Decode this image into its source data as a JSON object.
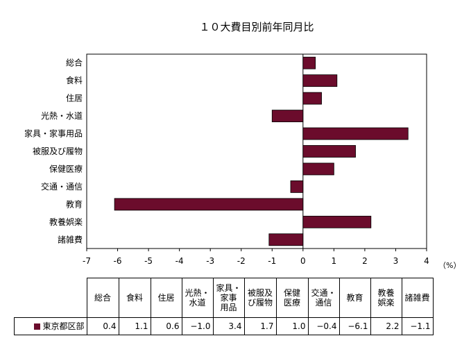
{
  "chart_data": {
    "type": "bar",
    "orientation": "horizontal",
    "title": "１０大費目別前年同月比",
    "unit_label": "（%）",
    "categories": [
      "総合",
      "食料",
      "住居",
      "光熱・水道",
      "家具・家事用品",
      "被服及び履物",
      "保健医療",
      "交通・通信",
      "教育",
      "教養娯楽",
      "諸雑費"
    ],
    "table_headers": [
      "総合",
      "食料",
      "住居",
      "光熱・\n水道",
      "家具・\n家事\n用品",
      "被服及\nび履物",
      "保健\n医療",
      "交通・\n通信",
      "教育",
      "教養\n娯楽",
      "諸雑費"
    ],
    "series": [
      {
        "name": "東京都区部",
        "values": [
          0.4,
          1.1,
          0.6,
          -1.0,
          3.4,
          1.7,
          1.0,
          -0.4,
          -6.1,
          2.2,
          -1.1
        ],
        "display_values": [
          "0.4",
          "1.1",
          "0.6",
          "−1.0",
          "3.4",
          "1.7",
          "1.0",
          "−0.4",
          "−6.1",
          "2.2",
          "−1.1"
        ]
      }
    ],
    "xlim": [
      -7,
      4
    ],
    "xticks": [
      -7,
      -6,
      -5,
      -4,
      -3,
      -2,
      -1,
      0,
      1,
      2,
      3,
      4
    ],
    "grid": false,
    "legend": "table-below",
    "bar_color": "#6b0c2c"
  }
}
